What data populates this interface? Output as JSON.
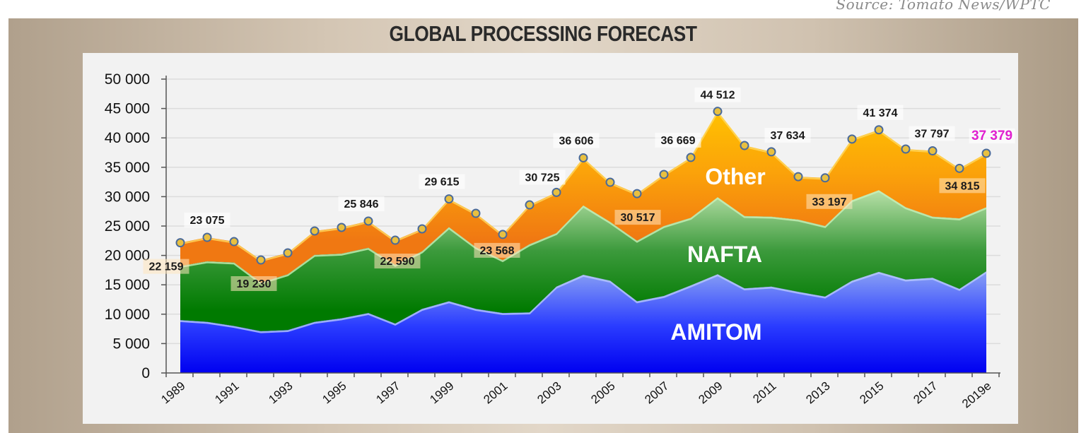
{
  "source": "Source: Tomato News/WPTC",
  "chart_data": {
    "type": "area",
    "stacked": true,
    "title": "GLOBAL PROCESSING FORECAST",
    "xlabel": "",
    "ylabel": "",
    "ylim": [
      0,
      50000
    ],
    "yticks": [
      "0",
      "5 000",
      "10 000",
      "15 000",
      "20 000",
      "25 000",
      "30 000",
      "35 000",
      "40 000",
      "45 000",
      "50 000"
    ],
    "grid": true,
    "x": [
      "1989",
      "1990",
      "1991",
      "1992",
      "1993",
      "1994",
      "1995",
      "1996",
      "1997",
      "1998",
      "1999",
      "2000",
      "2001",
      "2002",
      "2003",
      "2004",
      "2005",
      "2006",
      "2007",
      "2008",
      "2009",
      "2010",
      "2011",
      "2012",
      "2013",
      "2014",
      "2015",
      "2016",
      "2017",
      "2018",
      "2019e"
    ],
    "xtick_labels": [
      "1989",
      "1991",
      "1993",
      "1995",
      "1997",
      "1999",
      "2001",
      "2003",
      "2005",
      "2007",
      "2009",
      "2011",
      "2013",
      "2015",
      "2017",
      "2019e"
    ],
    "series": [
      {
        "name": "AMITOM",
        "color": "#1a1aff",
        "values": [
          9000,
          8700,
          8000,
          7100,
          7300,
          8700,
          9300,
          10200,
          8400,
          10900,
          12200,
          10900,
          10200,
          10300,
          14700,
          16700,
          15700,
          12200,
          13100,
          14900,
          16800,
          14400,
          14700,
          13800,
          13000,
          15700,
          17200,
          15900,
          16200,
          14300,
          17300
        ]
      },
      {
        "name": "NAFTA",
        "color": "#1e8c1e",
        "values": [
          9200,
          10300,
          10800,
          8300,
          9500,
          11400,
          11000,
          11100,
          10000,
          9800,
          12600,
          10500,
          9000,
          11600,
          9100,
          11800,
          10000,
          10300,
          11900,
          11500,
          13100,
          12300,
          11900,
          12300,
          12000,
          13700,
          13900,
          12300,
          10400,
          12000,
          10900
        ]
      },
      {
        "name": "Other",
        "color": "#f8a010",
        "values": [
          3959,
          4075,
          3550,
          3830,
          3630,
          4060,
          4460,
          4546,
          4190,
          3820,
          4815,
          5760,
          4368,
          6700,
          6925,
          8106,
          6750,
          8017,
          8780,
          10269,
          14612,
          12000,
          11034,
          7300,
          8197,
          10400,
          10274,
          9900,
          11197,
          8515,
          9179
        ]
      }
    ],
    "total_labels": [
      {
        "x": "1989",
        "text": "22 159"
      },
      {
        "x": "1990",
        "text": "23 075"
      },
      {
        "x": "1992",
        "text": "19 230"
      },
      {
        "x": "1996",
        "text": "25 846"
      },
      {
        "x": "1997",
        "text": "22 590"
      },
      {
        "x": "1999",
        "text": "29 615"
      },
      {
        "x": "2001",
        "text": "23 568"
      },
      {
        "x": "2003",
        "text": "30 725"
      },
      {
        "x": "2004",
        "text": "36 606"
      },
      {
        "x": "2006",
        "text": "30 517"
      },
      {
        "x": "2008",
        "text": "36 669"
      },
      {
        "x": "2009",
        "text": "44 512"
      },
      {
        "x": "2011",
        "text": "37 634"
      },
      {
        "x": "2013",
        "text": "33 197"
      },
      {
        "x": "2015",
        "text": "41 374"
      },
      {
        "x": "2017",
        "text": "37 797"
      },
      {
        "x": "2018",
        "text": "34 815"
      },
      {
        "x": "2019e",
        "text": "37 379",
        "color": "#e020d0"
      }
    ],
    "marker_color": "#e8c040"
  }
}
